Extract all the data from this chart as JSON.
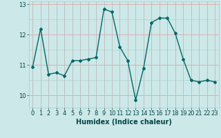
{
  "x": [
    0,
    1,
    2,
    3,
    4,
    5,
    6,
    7,
    8,
    9,
    10,
    11,
    12,
    13,
    14,
    15,
    16,
    17,
    18,
    19,
    20,
    21,
    22,
    23
  ],
  "y": [
    10.95,
    12.2,
    10.7,
    10.75,
    10.65,
    11.15,
    11.15,
    11.2,
    11.25,
    12.85,
    12.75,
    11.6,
    11.15,
    9.85,
    10.9,
    12.4,
    12.55,
    12.55,
    12.05,
    11.2,
    10.5,
    10.45,
    10.5,
    10.45
  ],
  "line_color": "#006666",
  "marker": "D",
  "marker_size": 2.0,
  "bg_color": "#cde8e8",
  "grid_color_major": "#aacccc",
  "grid_color_red": "#dd9999",
  "xlabel": "Humidex (Indice chaleur)",
  "ylim": [
    9.6,
    13.1
  ],
  "xlim": [
    -0.5,
    23.5
  ],
  "yticks": [
    10,
    11,
    12,
    13
  ],
  "xticks": [
    0,
    1,
    2,
    3,
    4,
    5,
    6,
    7,
    8,
    9,
    10,
    11,
    12,
    13,
    14,
    15,
    16,
    17,
    18,
    19,
    20,
    21,
    22,
    23
  ],
  "xlabel_fontsize": 7,
  "tick_fontsize": 6,
  "linewidth": 1.0
}
